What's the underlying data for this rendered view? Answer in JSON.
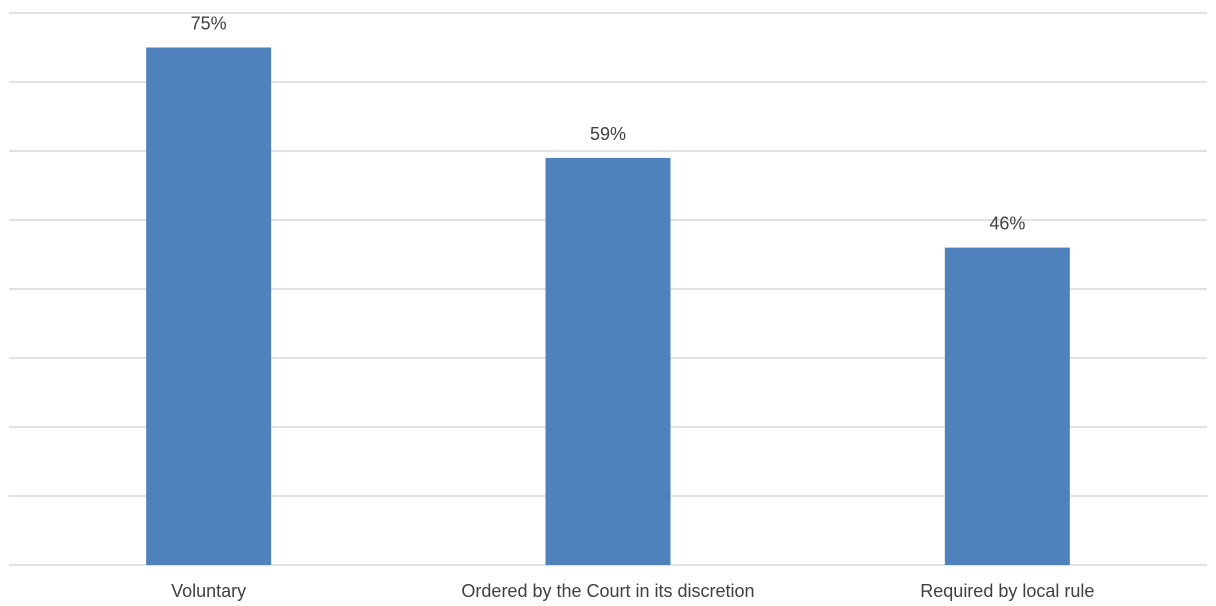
{
  "chart_data": {
    "type": "bar",
    "title": "",
    "xlabel": "",
    "ylabel": "",
    "categories": [
      "Voluntary",
      "Ordered by the Court in its discretion",
      "Required by local rule"
    ],
    "values": [
      75,
      59,
      46
    ],
    "data_labels": [
      "75%",
      "59%",
      "46%"
    ],
    "ylim": [
      0,
      80
    ],
    "y_tick_step": 10,
    "y_tick_labels_visible": false,
    "grid": true,
    "legend": "none",
    "bar_color": "#4f81bd"
  }
}
